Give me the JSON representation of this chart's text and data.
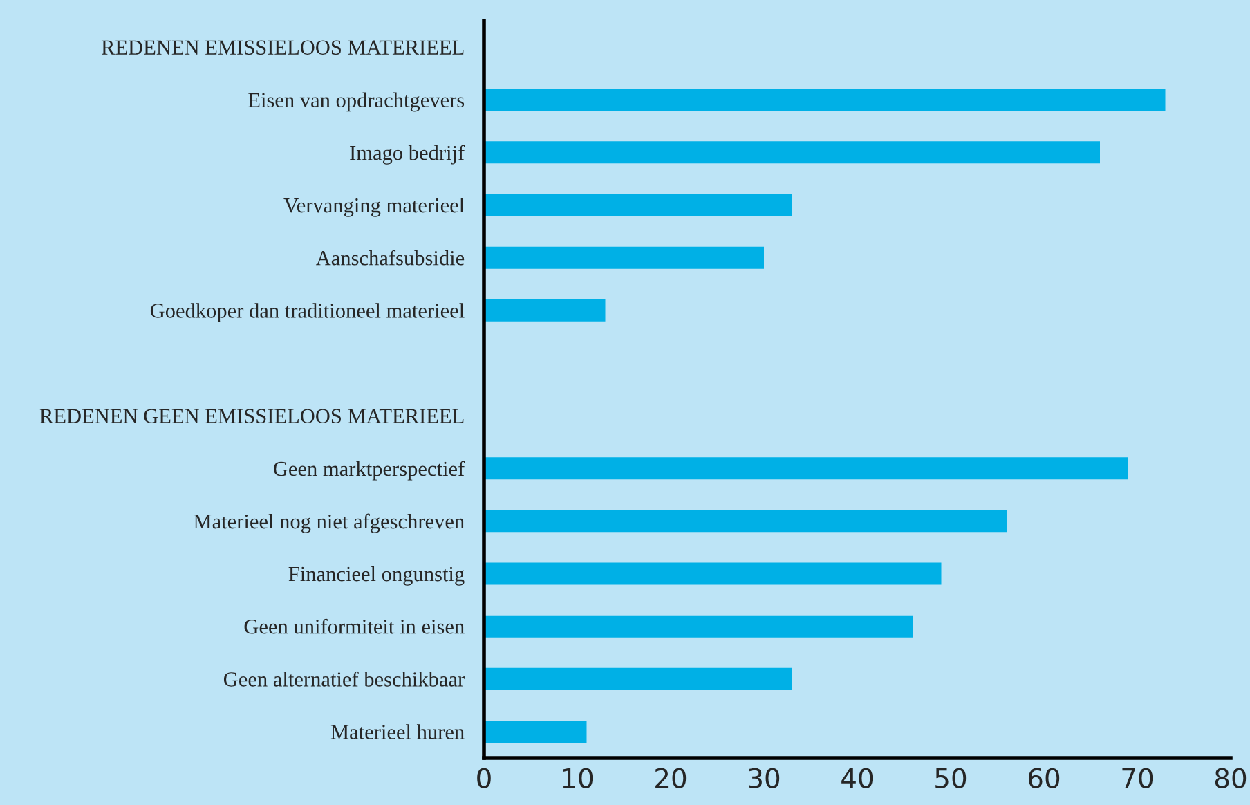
{
  "chart_data": {
    "type": "bar",
    "orientation": "horizontal",
    "categories": [
      "REDENEN EMISSIELOOS MATERIEEL",
      "Eisen van opdrachtgevers",
      "Imago bedrijf",
      "Vervanging materieel",
      "Aanschafsubsidie",
      "Goedkoper dan traditioneel materieel",
      null,
      "REDENEN GEEN EMISSIELOOS MATERIEEL",
      "Geen marktperspectief",
      "Materieel nog niet afgeschreven",
      "Financieel ongunstig",
      "Geen uniformiteit in eisen",
      "Geen alternatief beschikbaar",
      "Materieel huren"
    ],
    "values": [
      null,
      73,
      66,
      33,
      30,
      13,
      null,
      null,
      69,
      56,
      49,
      46,
      33,
      11
    ],
    "color": "#00b0e6",
    "xlim": [
      0,
      80
    ],
    "xticks": [
      0,
      10,
      20,
      30,
      40,
      50,
      60,
      70,
      80
    ],
    "grid": false,
    "legend": false
  }
}
